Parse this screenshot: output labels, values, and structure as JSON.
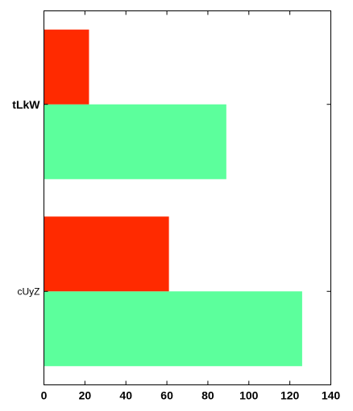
{
  "chart_data": {
    "type": "bar",
    "orientation": "horizontal",
    "categories": [
      "cUyZ",
      "tLkW"
    ],
    "category_label_bold": [
      false,
      true
    ],
    "series": [
      {
        "color": "#5cff9c",
        "values": [
          126,
          89
        ]
      },
      {
        "color": "#ff2a00",
        "values": [
          61,
          22
        ]
      }
    ],
    "xlim": [
      0,
      140
    ],
    "x_ticks": [
      0,
      20,
      40,
      60,
      80,
      100,
      120,
      140
    ],
    "grid": false,
    "legend": "none"
  }
}
